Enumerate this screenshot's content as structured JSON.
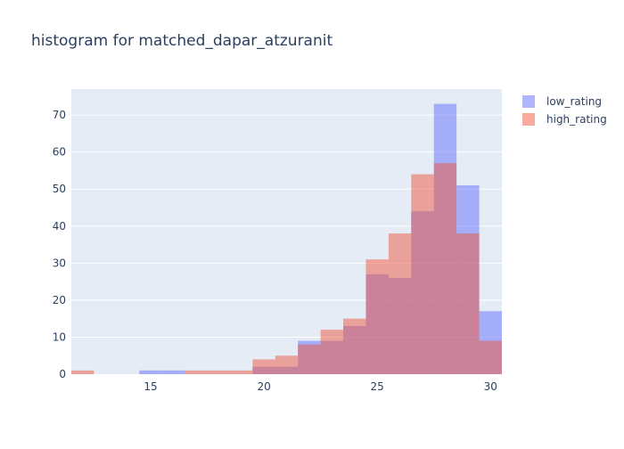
{
  "chart_data": {
    "type": "bar",
    "title": "histogram for matched_dapar_atzuranit",
    "xlabel": "",
    "ylabel": "",
    "bin_start": 11.5,
    "bin_width": 1,
    "xlim": [
      11.5,
      30.5
    ],
    "ylim": [
      0,
      77
    ],
    "x_ticks": [
      15,
      20,
      25,
      30
    ],
    "y_ticks": [
      0,
      10,
      20,
      30,
      40,
      50,
      60,
      70
    ],
    "grid": true,
    "legend_position": "top-right",
    "barmode": "overlay",
    "series": [
      {
        "name": "low_rating",
        "color": "#636efa",
        "opacity": 0.5,
        "values": [
          0,
          0,
          0,
          1,
          1,
          0,
          0,
          0,
          2,
          2,
          9,
          9,
          13,
          27,
          26,
          44,
          73,
          51,
          17
        ]
      },
      {
        "name": "high_rating",
        "color": "#ef553b",
        "opacity": 0.5,
        "values": [
          1,
          0,
          0,
          0,
          0,
          1,
          1,
          1,
          4,
          5,
          8,
          12,
          15,
          31,
          38,
          54,
          57,
          38,
          9
        ]
      }
    ]
  }
}
